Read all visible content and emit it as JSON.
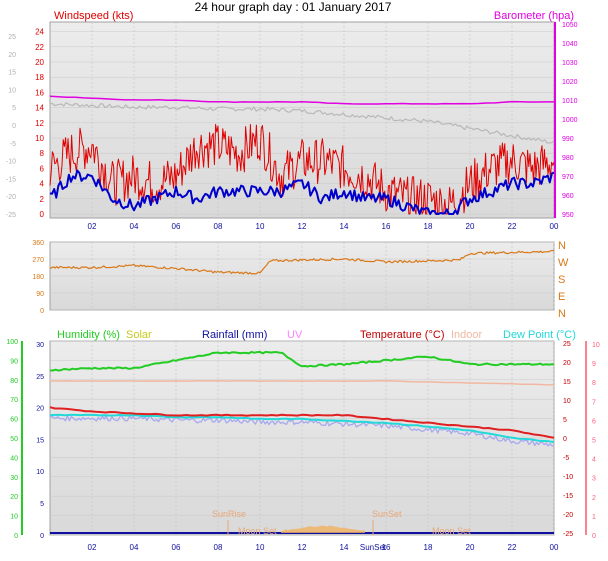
{
  "title": "24 hour graph day : 01 January 2017",
  "colors": {
    "wind": "#e00000",
    "wind_avg": "#0000cc",
    "baro": "#e000e0",
    "grey": "#b8b8b8",
    "dir": "#d87818",
    "humidity": "#22cc22",
    "temperature": "#e02020",
    "dewpoint": "#22d8d8",
    "indoor": "#f0b8a0",
    "lavender": "#a8a8f0",
    "solar": "#f0b060",
    "rain_axis": "#1010a0",
    "uv": "#ff80ff"
  },
  "x_ticks": [
    "02",
    "04",
    "06",
    "08",
    "10",
    "12",
    "14",
    "16",
    "18",
    "20",
    "22",
    "00"
  ],
  "panel1": {
    "left_label": "Windspeed (kts)",
    "right_label": "Barometer (hpa)",
    "left_ticks": [
      "24",
      "22",
      "20",
      "18",
      "16",
      "14",
      "12",
      "10",
      "8",
      "6",
      "4",
      "2",
      "0"
    ],
    "left_ticks_grey": [
      "25",
      "20",
      "15",
      "10",
      "5",
      "0",
      "-5",
      "-10",
      "-15",
      "-20",
      "-25"
    ],
    "right_ticks": [
      "1050",
      "1040",
      "1030",
      "1020",
      "1010",
      "1000",
      "990",
      "980",
      "970",
      "960",
      "950"
    ]
  },
  "panel2": {
    "left_ticks": [
      "360",
      "270",
      "180",
      "90",
      "0"
    ],
    "right_ticks": [
      "N",
      "W",
      "S",
      "E",
      "N"
    ]
  },
  "panel3": {
    "legend": {
      "humidity": "Humidity (%)",
      "solar": "Solar",
      "rainfall": "Rainfall (mm)",
      "uv": "UV",
      "temperature": "Temperature (°C)",
      "indoor": "Indoor",
      "dewpoint": "Dew Point (°C)"
    },
    "hum_ticks": [
      "100",
      "90",
      "80",
      "70",
      "60",
      "50",
      "40",
      "30",
      "20",
      "10",
      "0"
    ],
    "rain_ticks": [
      "30",
      "25",
      "20",
      "15",
      "10",
      "5",
      "0"
    ],
    "temp_ticks": [
      "25",
      "20",
      "15",
      "10",
      "5",
      "0",
      "-5",
      "-10",
      "-15",
      "-20",
      "-25"
    ],
    "uv_ticks": [
      "10",
      "9",
      "8",
      "7",
      "6",
      "5",
      "4",
      "3",
      "2",
      "1",
      "0"
    ],
    "annotations": {
      "sunrise": "SunRise",
      "sunset": "SunSet",
      "moonset": "Moon Set",
      "moonrise": "Moon Set",
      "sunset_axis": "SunSet"
    }
  },
  "chart_data": [
    {
      "type": "line",
      "x_unit": "hour",
      "series": [
        {
          "name": "Windspeed (kts)",
          "x": [
            0,
            1,
            2,
            3,
            4,
            5,
            6,
            7,
            8,
            9,
            10,
            11,
            12,
            13,
            14,
            15,
            16,
            17,
            18,
            19,
            20,
            21,
            22,
            23,
            24
          ],
          "values": [
            6,
            8,
            9,
            4,
            5,
            4,
            5,
            9,
            9,
            8,
            10,
            5,
            7,
            7,
            6,
            5,
            3,
            2,
            2,
            1,
            4,
            6,
            7,
            6,
            7
          ]
        },
        {
          "name": "Average wind",
          "x": [
            0,
            1,
            2,
            3,
            4,
            5,
            6,
            7,
            8,
            9,
            10,
            11,
            12,
            13,
            14,
            15,
            16,
            17,
            18,
            19,
            20,
            21,
            22,
            23,
            24
          ],
          "values": [
            2,
            5,
            5,
            2,
            1,
            2,
            3,
            2,
            3,
            3,
            3,
            3,
            4,
            2,
            3,
            2,
            2,
            1,
            0,
            0,
            2,
            3,
            4,
            4,
            5
          ]
        },
        {
          "name": "Barometer (hpa)",
          "x": [
            0,
            2,
            4,
            6,
            8,
            10,
            12,
            14,
            16,
            18,
            20,
            22,
            24
          ],
          "values": [
            1012,
            1011,
            1010,
            1010,
            1009,
            1009,
            1009,
            1008,
            1008,
            1008,
            1008,
            1009,
            1009
          ]
        },
        {
          "name": "Grey trace",
          "x": [
            0,
            2,
            4,
            6,
            8,
            10,
            12,
            14,
            16,
            18,
            20,
            22,
            24
          ],
          "values": [
            6,
            5.5,
            5,
            5,
            4.5,
            4.5,
            4,
            3,
            2,
            1,
            -1,
            -3,
            -5
          ]
        }
      ],
      "left_ylim": [
        0,
        25
      ],
      "right_ylim": [
        950,
        1050
      ]
    },
    {
      "type": "line",
      "x_unit": "hour",
      "series": [
        {
          "name": "Wind direction",
          "x": [
            0,
            2,
            4,
            6,
            8,
            10,
            10.5,
            12,
            14,
            16,
            18,
            19.5,
            20,
            22,
            24
          ],
          "values": [
            225,
            225,
            235,
            220,
            200,
            195,
            260,
            265,
            270,
            255,
            260,
            265,
            300,
            305,
            310
          ]
        }
      ],
      "ylim": [
        0,
        360
      ]
    },
    {
      "type": "line",
      "x_unit": "hour",
      "series": [
        {
          "name": "Humidity (%)",
          "x": [
            0,
            2,
            4,
            6,
            8,
            10,
            11,
            12,
            14,
            16,
            18,
            20,
            22,
            24
          ],
          "values": [
            85,
            86,
            86,
            90,
            94,
            94,
            94,
            87,
            88,
            90,
            92,
            88,
            88,
            88
          ]
        },
        {
          "name": "Temperature (°C)",
          "x": [
            0,
            2,
            4,
            6,
            8,
            10,
            12,
            14,
            16,
            18,
            20,
            22,
            24
          ],
          "values": [
            8,
            7,
            6.5,
            6,
            6,
            6,
            6,
            6,
            5,
            4,
            3,
            2,
            0
          ]
        },
        {
          "name": "Dew Point (°C)",
          "x": [
            0,
            2,
            4,
            6,
            8,
            10,
            12,
            14,
            16,
            18,
            20,
            22,
            24
          ],
          "values": [
            6,
            6,
            6,
            5.5,
            5.5,
            5,
            5,
            4.5,
            4,
            3,
            2,
            0,
            -1
          ]
        },
        {
          "name": "Indoor",
          "x": [
            0,
            4,
            8,
            12,
            16,
            20,
            24
          ],
          "values": [
            15,
            15,
            15,
            15,
            15,
            14.5,
            14
          ]
        },
        {
          "name": "Solar",
          "x": [
            11,
            11.5,
            12,
            12.5,
            13,
            13.5,
            14,
            14.5,
            15
          ],
          "values": [
            0.5,
            1,
            1.5,
            2,
            2,
            2,
            1.5,
            1,
            0.3
          ]
        }
      ],
      "hum_ylim": [
        0,
        100
      ],
      "temp_ylim": [
        -25,
        25
      ]
    }
  ]
}
